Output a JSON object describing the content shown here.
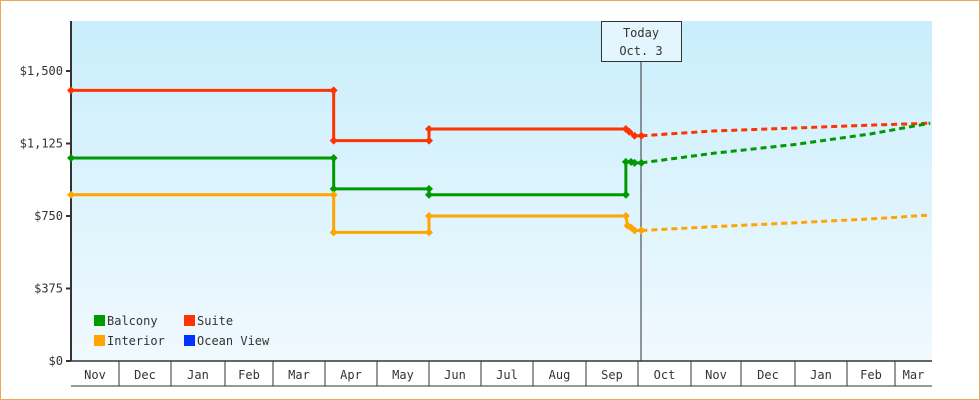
{
  "chart_data": {
    "type": "line",
    "title": "",
    "xlabel": "",
    "ylabel": "",
    "ylim": [
      0,
      1500
    ],
    "y_ticks": [
      "$0",
      "$375",
      "$750",
      "$1,125",
      "$1,500"
    ],
    "y_tick_values": [
      0,
      375,
      750,
      1125,
      1500
    ],
    "x_ticks": [
      "Nov",
      "Dec",
      "Jan",
      "Feb",
      "Mar",
      "Apr",
      "May",
      "Jun",
      "Jul",
      "Aug",
      "Sep",
      "Oct",
      "Nov",
      "Dec",
      "Jan",
      "Feb",
      "Mar"
    ],
    "grid": false,
    "background": "light-blue gradient",
    "legend_position": "bottom-left",
    "today_marker": {
      "line1": "Today",
      "line2": "Oct. 3",
      "date_index": "Oct 3"
    },
    "legend": [
      {
        "name": "Balcony",
        "color": "#009900"
      },
      {
        "name": "Suite",
        "color": "#ff3300"
      },
      {
        "name": "Interior",
        "color": "#ffa500"
      },
      {
        "name": "Ocean View",
        "color": "#0033ff"
      }
    ],
    "series": [
      {
        "name": "Suite",
        "color": "#ff3300",
        "history": [
          [
            "Nov 1",
            1400
          ],
          [
            "Apr 6",
            1400
          ],
          [
            "Apr 6",
            1140
          ],
          [
            "Jun 1",
            1140
          ],
          [
            "Jun 1",
            1200
          ],
          [
            "Sep 24",
            1200
          ],
          [
            "Sep 26",
            1185
          ],
          [
            "Sep 29",
            1165
          ],
          [
            "Oct 3",
            1165
          ]
        ],
        "forecast": [
          [
            "Oct 3",
            1165
          ],
          [
            "Nov 15",
            1190
          ],
          [
            "Jan 1",
            1205
          ],
          [
            "Feb 15",
            1220
          ],
          [
            "Mar 22",
            1230
          ]
        ]
      },
      {
        "name": "Balcony",
        "color": "#009900",
        "history": [
          [
            "Nov 1",
            1050
          ],
          [
            "Apr 6",
            1050
          ],
          [
            "Apr 6",
            890
          ],
          [
            "Jun 1",
            890
          ],
          [
            "Jun 1",
            860
          ],
          [
            "Sep 24",
            860
          ],
          [
            "Sep 24",
            1030
          ],
          [
            "Sep 27",
            1030
          ],
          [
            "Sep 29",
            1025
          ],
          [
            "Oct 3",
            1025
          ]
        ],
        "forecast": [
          [
            "Oct 3",
            1025
          ],
          [
            "Nov 15",
            1075
          ],
          [
            "Jan 1",
            1120
          ],
          [
            "Feb 15",
            1175
          ],
          [
            "Mar 22",
            1230
          ]
        ]
      },
      {
        "name": "Interior",
        "color": "#ffa500",
        "history": [
          [
            "Nov 1",
            860
          ],
          [
            "Apr 6",
            860
          ],
          [
            "Apr 6",
            665
          ],
          [
            "Jun 1",
            665
          ],
          [
            "Jun 1",
            750
          ],
          [
            "Sep 24",
            750
          ],
          [
            "Sep 25",
            700
          ],
          [
            "Sep 27",
            690
          ],
          [
            "Sep 29",
            675
          ],
          [
            "Oct 3",
            675
          ]
        ],
        "forecast": [
          [
            "Oct 3",
            675
          ],
          [
            "Nov 15",
            695
          ],
          [
            "Jan 1",
            715
          ],
          [
            "Feb 15",
            735
          ],
          [
            "Mar 22",
            755
          ]
        ]
      }
    ]
  }
}
